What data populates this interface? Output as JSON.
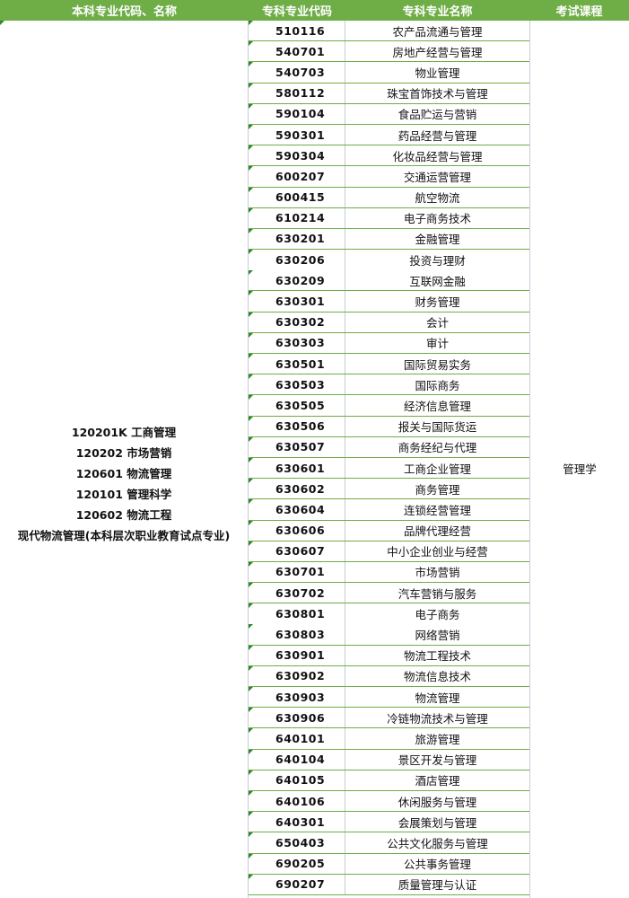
{
  "headers": [
    "本科专业代码、名称",
    "专科专业代码",
    "专科专业名称",
    "考试课程"
  ],
  "undergrad_majors": [
    "120201K 工商管理",
    "120202 市场营销",
    "120601 物流管理",
    "120101 管理科学",
    "120602 物流工程",
    "现代物流管理(本科层次职业教育试点专业)"
  ],
  "exam_course": "管理学",
  "rows": [
    [
      "510116",
      "农产品流通与管理"
    ],
    [
      "540701",
      "房地产经营与管理"
    ],
    [
      "540703",
      "物业管理"
    ],
    [
      "580112",
      "珠宝首饰技术与管理"
    ],
    [
      "590104",
      "食品贮运与营销"
    ],
    [
      "590301",
      "药品经营与管理"
    ],
    [
      "590304",
      "化妆品经营与管理"
    ],
    [
      "600207",
      "交通运营管理"
    ],
    [
      "600415",
      "航空物流"
    ],
    [
      "610214",
      "电子商务技术"
    ],
    [
      "630201",
      "金融管理"
    ],
    [
      "630206",
      "投资与理财"
    ],
    [
      "630209",
      "互联网金融"
    ],
    [
      "630301",
      "财务管理"
    ],
    [
      "630302",
      "会计"
    ],
    [
      "630303",
      "审计"
    ],
    [
      "630501",
      "国际贸易实务"
    ],
    [
      "630503",
      "国际商务"
    ],
    [
      "630505",
      "经济信息管理"
    ],
    [
      "630506",
      "报关与国际货运"
    ],
    [
      "630507",
      "商务经纪与代理"
    ],
    [
      "630601",
      "工商企业管理"
    ],
    [
      "630602",
      "商务管理"
    ],
    [
      "630604",
      "连锁经营管理"
    ],
    [
      "630606",
      "品牌代理经营"
    ],
    [
      "630607",
      "中小企业创业与经营"
    ],
    [
      "630701",
      "市场营销"
    ],
    [
      "630702",
      "汽车营销与服务"
    ],
    [
      "630801",
      "电子商务"
    ],
    [
      "630803",
      "网络营销"
    ],
    [
      "630901",
      "物流工程技术"
    ],
    [
      "630902",
      "物流信息技术"
    ],
    [
      "630903",
      "物流管理"
    ],
    [
      "630906",
      "冷链物流技术与管理"
    ],
    [
      "640101",
      "旅游管理"
    ],
    [
      "640104",
      "景区开发与管理"
    ],
    [
      "640105",
      "酒店管理"
    ],
    [
      "640106",
      "休闲服务与管理"
    ],
    [
      "640301",
      "会展策划与管理"
    ],
    [
      "650403",
      "公共文化服务与管理"
    ],
    [
      "690205",
      "公共事务管理"
    ],
    [
      "690207",
      "质量管理与认证"
    ]
  ]
}
